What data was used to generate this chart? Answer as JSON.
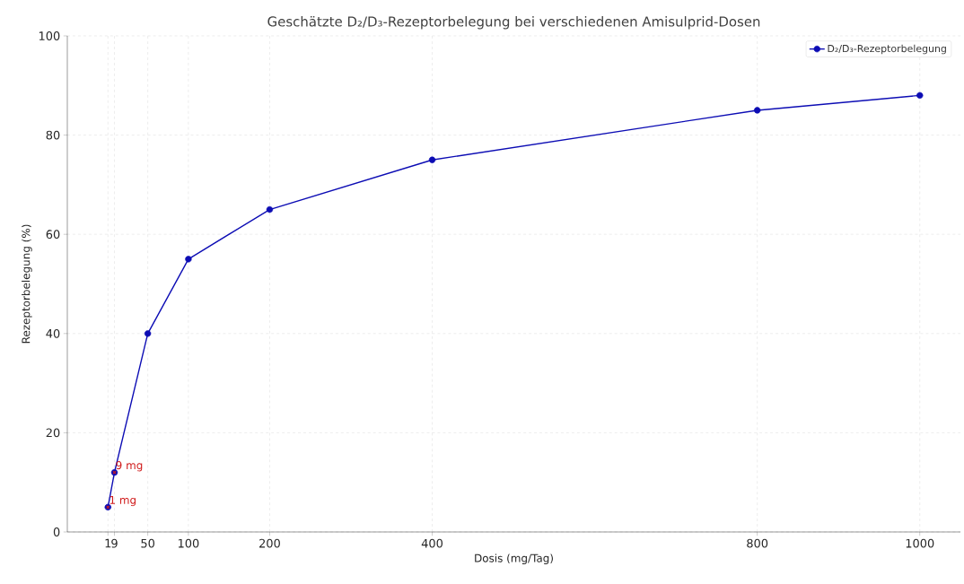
{
  "chart_data": {
    "type": "line",
    "title": "Geschätzte D₂/D₃-Rezeptorbelegung bei verschiedenen Amisulprid-Dosen",
    "xlabel": "Dosis (mg/Tag)",
    "ylabel": "Rezeptorbelegung (%)",
    "x": [
      1,
      9,
      50,
      100,
      200,
      400,
      800,
      1000
    ],
    "series": [
      {
        "name": "D₂/D₃-Rezeptorbelegung",
        "color": "#0c0cb4",
        "values": [
          5,
          12,
          40,
          55,
          65,
          75,
          85,
          88
        ],
        "marker": "circle"
      },
      {
        "type": "scatter",
        "color": "#d01c1c",
        "x": [
          1,
          9
        ],
        "values": [
          5,
          12
        ],
        "marker": "cross"
      }
    ],
    "annotations": [
      {
        "text": "1 mg",
        "x": 1,
        "y": 5
      },
      {
        "text": "9 mg",
        "x": 9,
        "y": 12
      }
    ],
    "xlim": [
      -49,
      1050
    ],
    "ylim": [
      0,
      100
    ],
    "xticks": [
      1,
      9,
      50,
      100,
      200,
      400,
      800,
      1000
    ],
    "yticks": [
      0,
      20,
      40,
      60,
      80,
      100
    ],
    "grid": true,
    "legend": "top right"
  }
}
